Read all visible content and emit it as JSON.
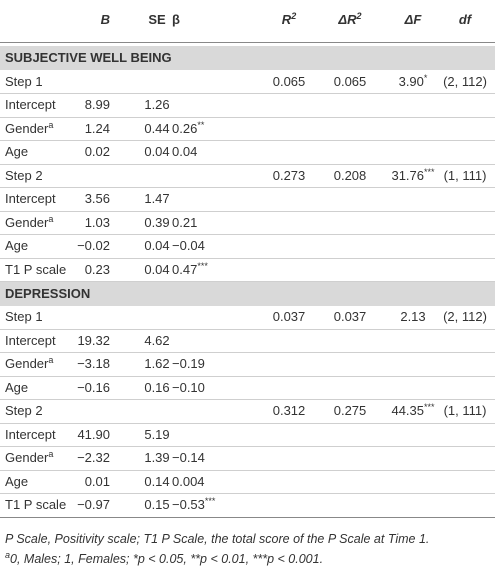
{
  "table": {
    "columns": [
      null,
      "B",
      "SE",
      "β",
      {
        "text": "R",
        "sup": "2"
      },
      {
        "text": "ΔR",
        "sup": "2"
      },
      "ΔF",
      "df"
    ],
    "sections": [
      {
        "title": "SUBJECTIVE WELL BEING",
        "rows": [
          [
            "Step 1",
            null,
            null,
            null,
            "0.065",
            "0.065",
            {
              "text": "3.90",
              "sup": "*"
            },
            "(2, 112)"
          ],
          [
            "Intercept",
            "8.99",
            "1.26",
            null,
            null,
            null,
            null,
            null
          ],
          [
            {
              "text": "Gender",
              "sup": "a"
            },
            "1.24",
            "0.44",
            {
              "text": "0.26",
              "sup": "**"
            },
            null,
            null,
            null,
            null
          ],
          [
            "Age",
            "0.02",
            "0.04",
            "0.04",
            null,
            null,
            null,
            null
          ],
          [
            "Step 2",
            null,
            null,
            null,
            "0.273",
            "0.208",
            {
              "text": "31.76",
              "sup": "***"
            },
            "(1, 111)"
          ],
          [
            "Intercept",
            "3.56",
            "1.47",
            null,
            null,
            null,
            null,
            null
          ],
          [
            {
              "text": "Gender",
              "sup": "a"
            },
            "1.03",
            "0.39",
            "0.21",
            null,
            null,
            null,
            null
          ],
          [
            "Age",
            "−0.02",
            "0.04",
            "−0.04",
            null,
            null,
            null,
            null
          ],
          [
            "T1 P scale",
            "0.23",
            "0.04",
            {
              "text": "0.47",
              "sup": "***"
            },
            null,
            null,
            null,
            null
          ]
        ]
      },
      {
        "title": "DEPRESSION",
        "rows": [
          [
            "Step 1",
            null,
            null,
            null,
            "0.037",
            "0.037",
            "2.13",
            "(2, 112)"
          ],
          [
            "Intercept",
            "19.32",
            "4.62",
            null,
            null,
            null,
            null,
            null
          ],
          [
            {
              "text": "Gender",
              "sup": "a"
            },
            "−3.18",
            "1.62",
            "−0.19",
            null,
            null,
            null,
            null
          ],
          [
            "Age",
            "−0.16",
            "0.16",
            "−0.10",
            null,
            null,
            null,
            null
          ],
          [
            "Step 2",
            null,
            null,
            null,
            "0.312",
            "0.275",
            {
              "text": "44.35",
              "sup": "***"
            },
            "(1, 111)"
          ],
          [
            "Intercept",
            "41.90",
            "5.19",
            null,
            null,
            null,
            null,
            null
          ],
          [
            {
              "text": "Gender",
              "sup": "a"
            },
            "−2.32",
            "1.39",
            "−0.14",
            null,
            null,
            null,
            null
          ],
          [
            "Age",
            "0.01",
            "0.14",
            "0.004",
            null,
            null,
            null,
            null
          ],
          [
            "T1 P scale",
            "−0.97",
            "0.15",
            {
              "text": "−0.53",
              "sup": "***"
            },
            null,
            null,
            null,
            null
          ]
        ]
      }
    ],
    "notes": [
      {
        "text": "P Scale, Positivity scale; T1 P Scale, the total score of the P Scale at Time 1."
      },
      {
        "sup": "a",
        "text": "0, Males; 1, Females; *p < 0.05, **p < 0.01, ***p < 0.001."
      }
    ]
  }
}
